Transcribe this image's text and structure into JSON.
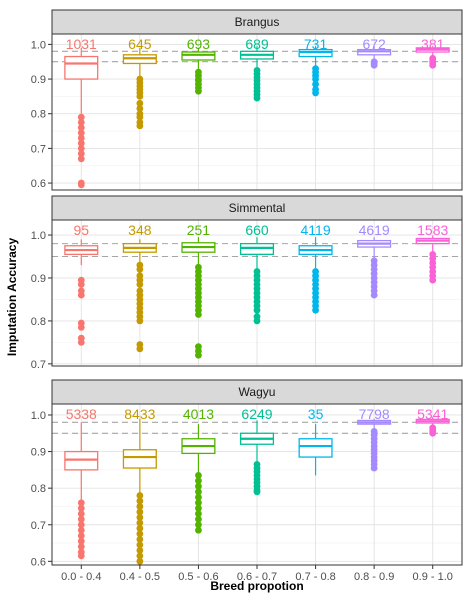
{
  "chart_data": {
    "type": "boxplot",
    "ylabel": "Imputation Accuracy",
    "xlabel": "Breed propotion",
    "categories": [
      "0.0 - 0.4",
      "0.4 - 0.5",
      "0.5 - 0.6",
      "0.6 - 0.7",
      "0.7 - 0.8",
      "0.8 - 0.9",
      "0.9 - 1.0"
    ],
    "colors": [
      "#F8766D",
      "#C49A00",
      "#53B400",
      "#00C094",
      "#00B6EB",
      "#A58AFF",
      "#FB61D7"
    ],
    "reference_lines": [
      0.95,
      0.98
    ],
    "grid": true,
    "panels": [
      {
        "strip": "Brangus",
        "ylim": [
          0.58,
          1.03
        ],
        "yticks": [
          0.6,
          0.7,
          0.8,
          0.9,
          1.0
        ],
        "ytick_labels": [
          "0.6",
          "0.7",
          "0.8",
          "0.9",
          "1.0"
        ],
        "counts": [
          "1031",
          "645",
          "693",
          "689",
          "731",
          "672",
          "381"
        ],
        "boxes": [
          {
            "q1": 0.9,
            "median": 0.945,
            "q3": 0.965,
            "lower": 0.8,
            "upper": 0.99,
            "outliers": [
              0.79,
              0.775,
              0.76,
              0.745,
              0.73,
              0.715,
              0.7,
              0.685,
              0.67,
              0.6,
              0.595
            ]
          },
          {
            "q1": 0.945,
            "median": 0.96,
            "q3": 0.97,
            "lower": 0.905,
            "upper": 0.99,
            "outliers": [
              0.9,
              0.89,
              0.88,
              0.87,
              0.86,
              0.85,
              0.83,
              0.815,
              0.8,
              0.79,
              0.775,
              0.765
            ]
          },
          {
            "q1": 0.955,
            "median": 0.97,
            "q3": 0.978,
            "lower": 0.925,
            "upper": 0.99,
            "outliers": [
              0.92,
              0.91,
              0.9,
              0.895,
              0.885,
              0.875,
              0.865
            ]
          },
          {
            "q1": 0.958,
            "median": 0.97,
            "q3": 0.98,
            "lower": 0.93,
            "upper": 0.995,
            "outliers": [
              0.925,
              0.915,
              0.905,
              0.895,
              0.885,
              0.875,
              0.865,
              0.855,
              0.845
            ]
          },
          {
            "q1": 0.965,
            "median": 0.978,
            "q3": 0.985,
            "lower": 0.935,
            "upper": 0.995,
            "outliers": [
              0.93,
              0.92,
              0.91,
              0.9,
              0.885,
              0.87,
              0.86
            ]
          },
          {
            "q1": 0.97,
            "median": 0.98,
            "q3": 0.985,
            "lower": 0.955,
            "upper": 0.995,
            "outliers": [
              0.95,
              0.945,
              0.94
            ]
          },
          {
            "q1": 0.978,
            "median": 0.985,
            "q3": 0.99,
            "lower": 0.965,
            "upper": 0.995,
            "outliers": [
              0.96,
              0.955,
              0.95,
              0.945,
              0.94
            ]
          }
        ]
      },
      {
        "strip": "Simmental",
        "ylim": [
          0.695,
          1.035
        ],
        "yticks": [
          0.7,
          0.8,
          0.9,
          1.0
        ],
        "ytick_labels": [
          "0.7",
          "0.8",
          "0.9",
          "1.0"
        ],
        "counts": [
          "95",
          "348",
          "251",
          "660",
          "4119",
          "4619",
          "1583"
        ],
        "boxes": [
          {
            "q1": 0.955,
            "median": 0.965,
            "q3": 0.975,
            "lower": 0.93,
            "upper": 0.99,
            "outliers": [
              0.895,
              0.885,
              0.87,
              0.86,
              0.795,
              0.785,
              0.76,
              0.75
            ]
          },
          {
            "q1": 0.96,
            "median": 0.97,
            "q3": 0.98,
            "lower": 0.935,
            "upper": 0.99,
            "outliers": [
              0.93,
              0.92,
              0.905,
              0.895,
              0.885,
              0.87,
              0.86,
              0.85,
              0.84,
              0.83,
              0.82,
              0.81,
              0.8,
              0.745,
              0.735
            ]
          },
          {
            "q1": 0.96,
            "median": 0.972,
            "q3": 0.982,
            "lower": 0.93,
            "upper": 0.995,
            "outliers": [
              0.925,
              0.915,
              0.905,
              0.895,
              0.885,
              0.875,
              0.865,
              0.855,
              0.845,
              0.835,
              0.825,
              0.815,
              0.74,
              0.73,
              0.72
            ]
          },
          {
            "q1": 0.955,
            "median": 0.97,
            "q3": 0.98,
            "lower": 0.92,
            "upper": 0.995,
            "outliers": [
              0.915,
              0.905,
              0.895,
              0.885,
              0.875,
              0.865,
              0.855,
              0.845,
              0.835,
              0.825,
              0.81,
              0.8
            ]
          },
          {
            "q1": 0.955,
            "median": 0.965,
            "q3": 0.975,
            "lower": 0.92,
            "upper": 0.995,
            "outliers": [
              0.915,
              0.905,
              0.895,
              0.885,
              0.875,
              0.865,
              0.855,
              0.845,
              0.835,
              0.825
            ]
          },
          {
            "q1": 0.972,
            "median": 0.98,
            "q3": 0.987,
            "lower": 0.945,
            "upper": 0.995,
            "outliers": [
              0.94,
              0.93,
              0.92,
              0.91,
              0.9,
              0.89,
              0.88,
              0.87,
              0.86
            ]
          },
          {
            "q1": 0.98,
            "median": 0.987,
            "q3": 0.992,
            "lower": 0.96,
            "upper": 0.999,
            "outliers": [
              0.955,
              0.945,
              0.935,
              0.925,
              0.915,
              0.905,
              0.895
            ]
          }
        ]
      },
      {
        "strip": "Wagyu",
        "ylim": [
          0.59,
          1.03
        ],
        "yticks": [
          0.6,
          0.7,
          0.8,
          0.9,
          1.0
        ],
        "ytick_labels": [
          "0.6",
          "0.7",
          "0.8",
          "0.9",
          "1.0"
        ],
        "counts": [
          "5338",
          "8433",
          "4013",
          "6249",
          "35",
          "7798",
          "5341"
        ],
        "boxes": [
          {
            "q1": 0.85,
            "median": 0.878,
            "q3": 0.9,
            "lower": 0.765,
            "upper": 0.98,
            "outliers": [
              0.76,
              0.745,
              0.73,
              0.715,
              0.7,
              0.685,
              0.67,
              0.655,
              0.64,
              0.625,
              0.615
            ]
          },
          {
            "q1": 0.855,
            "median": 0.885,
            "q3": 0.905,
            "lower": 0.785,
            "upper": 0.99,
            "outliers": [
              0.78,
              0.765,
              0.75,
              0.735,
              0.72,
              0.705,
              0.69,
              0.675,
              0.66,
              0.645,
              0.63,
              0.615,
              0.6
            ]
          },
          {
            "q1": 0.895,
            "median": 0.915,
            "q3": 0.935,
            "lower": 0.84,
            "upper": 0.975,
            "outliers": [
              0.835,
              0.82,
              0.805,
              0.79,
              0.775,
              0.76,
              0.745,
              0.73,
              0.715,
              0.7,
              0.685
            ]
          },
          {
            "q1": 0.92,
            "median": 0.935,
            "q3": 0.95,
            "lower": 0.87,
            "upper": 0.985,
            "outliers": [
              0.865,
              0.855,
              0.845,
              0.835,
              0.825,
              0.815,
              0.805,
              0.795,
              0.79
            ]
          },
          {
            "q1": 0.885,
            "median": 0.915,
            "q3": 0.935,
            "lower": 0.835,
            "upper": 0.975,
            "outliers": []
          },
          {
            "q1": 0.975,
            "median": 0.98,
            "q3": 0.985,
            "lower": 0.96,
            "upper": 0.99,
            "outliers": [
              0.955,
              0.945,
              0.935,
              0.925,
              0.915,
              0.905,
              0.895,
              0.885,
              0.875,
              0.865,
              0.855
            ]
          },
          {
            "q1": 0.978,
            "median": 0.983,
            "q3": 0.988,
            "lower": 0.968,
            "upper": 0.995,
            "outliers": [
              0.965,
              0.96,
              0.955,
              0.95
            ]
          }
        ]
      }
    ]
  }
}
